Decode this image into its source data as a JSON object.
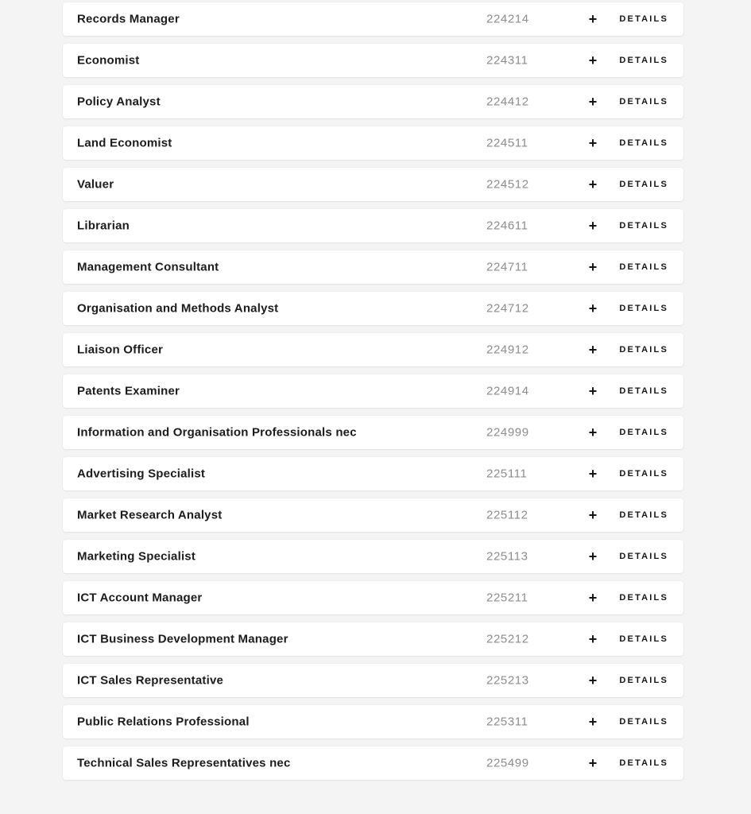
{
  "colors": {
    "bg": "#f5f4f4",
    "card": "#ffffff",
    "title": "#1c1c1c",
    "code": "#8d8d8d",
    "ink": "#161616"
  },
  "labels": {
    "details": "DETAILS"
  },
  "icons": {
    "plus": "+"
  },
  "rows": [
    {
      "title": "Records Manager",
      "code": "224214"
    },
    {
      "title": "Economist",
      "code": "224311"
    },
    {
      "title": "Policy Analyst",
      "code": "224412"
    },
    {
      "title": "Land Economist",
      "code": "224511"
    },
    {
      "title": "Valuer",
      "code": "224512"
    },
    {
      "title": "Librarian",
      "code": "224611"
    },
    {
      "title": "Management Consultant",
      "code": "224711"
    },
    {
      "title": "Organisation and Methods Analyst",
      "code": "224712"
    },
    {
      "title": "Liaison Officer",
      "code": "224912"
    },
    {
      "title": "Patents Examiner",
      "code": "224914"
    },
    {
      "title": "Information and Organisation Professionals nec",
      "code": "224999"
    },
    {
      "title": "Advertising Specialist",
      "code": "225111"
    },
    {
      "title": "Market Research Analyst",
      "code": "225112"
    },
    {
      "title": "Marketing Specialist",
      "code": "225113"
    },
    {
      "title": "ICT Account Manager",
      "code": "225211"
    },
    {
      "title": "ICT Business Development Manager",
      "code": "225212"
    },
    {
      "title": "ICT Sales Representative",
      "code": "225213"
    },
    {
      "title": "Public Relations Professional",
      "code": "225311"
    },
    {
      "title": "Technical Sales Representatives nec",
      "code": "225499"
    }
  ]
}
